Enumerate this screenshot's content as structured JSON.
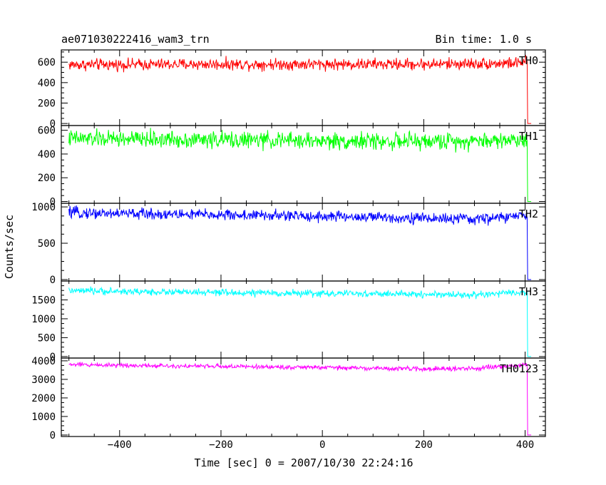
{
  "header": {
    "title": "ae071030222416_wam3_trn",
    "bin_time": "Bin time: 1.0 s"
  },
  "chart_data": {
    "type": "line",
    "xlabel": "Time [sec] 0 = 2007/10/30 22:24:16",
    "ylabel": "Counts/sec",
    "xlim": [
      -515,
      440
    ],
    "x_ticks": [
      -400,
      -200,
      0,
      200,
      400
    ],
    "x_tick_labels": [
      "−400",
      "−200",
      "0",
      "200",
      "400"
    ],
    "x_start": -500,
    "x_drop": 405,
    "x_end": 412,
    "panels": [
      {
        "name": "TH0",
        "color": "#ff0000",
        "ylim": [
          -20,
          720
        ],
        "yticks": [
          0,
          200,
          400,
          600
        ],
        "ytick_labels": [
          "0",
          "200",
          "400",
          "600"
        ],
        "level": [
          [
            -500,
            575
          ],
          [
            -200,
            580
          ],
          [
            0,
            580
          ],
          [
            200,
            580
          ],
          [
            380,
            590
          ],
          [
            400,
            600
          ]
        ],
        "noise": 28
      },
      {
        "name": "TH1",
        "color": "#00ff00",
        "ylim": [
          -15,
          640
        ],
        "yticks": [
          0,
          200,
          400,
          600
        ],
        "ytick_labels": [
          "0",
          "200",
          "400",
          "600"
        ],
        "level": [
          [
            -500,
            530
          ],
          [
            -200,
            520
          ],
          [
            0,
            510
          ],
          [
            200,
            505
          ],
          [
            400,
            520
          ]
        ],
        "noise": 35
      },
      {
        "name": "TH2",
        "color": "#0000ff",
        "ylim": [
          -20,
          1050
        ],
        "yticks": [
          0,
          500,
          1000
        ],
        "ytick_labels": [
          "0",
          "500",
          "1000"
        ],
        "level": [
          [
            -500,
            920
          ],
          [
            -200,
            890
          ],
          [
            0,
            870
          ],
          [
            200,
            845
          ],
          [
            300,
            830
          ],
          [
            400,
            880
          ]
        ],
        "noise": 38
      },
      {
        "name": "TH3",
        "color": "#00ffff",
        "ylim": [
          -40,
          2000
        ],
        "yticks": [
          0,
          500,
          1000,
          1500
        ],
        "ytick_labels": [
          "0",
          "500",
          "1000",
          "1500"
        ],
        "level": [
          [
            -500,
            1740
          ],
          [
            -200,
            1690
          ],
          [
            0,
            1670
          ],
          [
            200,
            1650
          ],
          [
            300,
            1630
          ],
          [
            400,
            1700
          ]
        ],
        "noise": 45
      },
      {
        "name": "TH0123",
        "color": "#ff00ff",
        "ylim": [
          -80,
          4150
        ],
        "yticks": [
          0,
          1000,
          2000,
          3000,
          4000
        ],
        "ytick_labels": [
          "0",
          "1000",
          "2000",
          "3000",
          "4000"
        ],
        "level": [
          [
            -500,
            3800
          ],
          [
            -200,
            3700
          ],
          [
            0,
            3640
          ],
          [
            200,
            3560
          ],
          [
            300,
            3580
          ],
          [
            400,
            3780
          ]
        ],
        "noise": 60
      }
    ]
  }
}
